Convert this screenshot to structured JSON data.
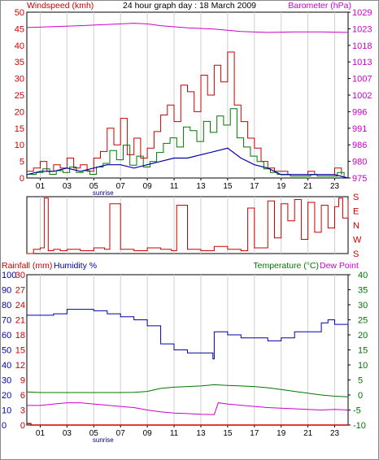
{
  "chart_data": [
    {
      "type": "line",
      "title": "24 hour graph day : 18 March 2009",
      "left_axis": {
        "label": "Windspeed (kmh)",
        "color": "#cc0000",
        "range": [
          0,
          50
        ],
        "ticks": [
          "0",
          "5",
          "10",
          "15",
          "20",
          "25",
          "30",
          "35",
          "40",
          "45",
          "50"
        ]
      },
      "right_axis": {
        "label": "Barometer (hPa)",
        "color": "#cc00cc",
        "range": [
          975,
          1029
        ],
        "ticks": [
          "975",
          "980",
          "986",
          "991",
          "996",
          "1002",
          "1007",
          "1013",
          "1018",
          "1023",
          "1029"
        ]
      },
      "x_ticks": [
        "01",
        "03",
        "05",
        "07",
        "09",
        "11",
        "13",
        "15",
        "17",
        "19",
        "21",
        "23"
      ],
      "annotation": "sunrise",
      "grid": "vertical",
      "series": [
        {
          "name": "Barometer (hPa)",
          "color": "#cc00cc",
          "x": [
            0,
            2,
            4,
            6,
            8,
            9,
            10,
            12,
            14,
            16,
            18,
            20,
            22,
            24
          ],
          "values": [
            1024,
            1024.3,
            1024.6,
            1025,
            1025.4,
            1025.2,
            1024.6,
            1023.9,
            1023.5,
            1022.7,
            1022.4,
            1022.6,
            1022.6,
            1022.4
          ]
        },
        {
          "name": "Windspeed gust",
          "color": "#cc0000",
          "x": [
            0,
            0.5,
            1,
            1.5,
            2,
            2.5,
            3,
            3.5,
            4,
            4.5,
            5,
            5.5,
            6,
            6.5,
            7,
            7.5,
            8,
            8.5,
            9,
            9.5,
            10,
            10.5,
            11,
            11.5,
            12,
            12.5,
            13,
            13.5,
            14,
            14.5,
            15,
            15.5,
            16,
            16.5,
            17,
            17.5,
            18,
            18.5,
            19,
            19.5,
            20,
            20.5,
            21,
            21.5,
            22,
            22.5,
            23,
            23.5
          ],
          "values": [
            2,
            3,
            5,
            2,
            4,
            3,
            6,
            3,
            4,
            2,
            6,
            8,
            15,
            10,
            18,
            7,
            12,
            6,
            9,
            14,
            19,
            22,
            17,
            28,
            26,
            20,
            31,
            25,
            34,
            29,
            38,
            22,
            17,
            12,
            9,
            5,
            3,
            2,
            2,
            1,
            1,
            1,
            2,
            1,
            1,
            1,
            3,
            1
          ]
        },
        {
          "name": "Windspeed average",
          "color": "#0000aa",
          "x": [
            0,
            1,
            2,
            3,
            4,
            5,
            6,
            7,
            8,
            9,
            10,
            11,
            12,
            13,
            14,
            15,
            16,
            17,
            18,
            19,
            20,
            21,
            22,
            23,
            24
          ],
          "values": [
            1,
            2,
            2,
            3,
            2,
            3,
            4,
            4,
            3,
            4,
            5,
            6,
            6,
            7,
            8,
            9,
            6,
            4,
            3,
            1,
            1,
            1,
            1,
            1,
            0
          ]
        }
      ]
    },
    {
      "type": "line",
      "y_categories": [
        "S",
        "E",
        "N",
        "W",
        "S"
      ],
      "color": "#cc0000",
      "x_ticks": [
        "01",
        "03",
        "05",
        "07",
        "09",
        "11",
        "13",
        "15",
        "17",
        "19",
        "21",
        "23"
      ],
      "series": [
        {
          "name": "Wind direction",
          "x": [
            0,
            0.5,
            1,
            1.3,
            1.6,
            2,
            2.5,
            3,
            4,
            5,
            5.8,
            6.2,
            7,
            8,
            9,
            10,
            10.8,
            11.2,
            12,
            13,
            14,
            15,
            16,
            16.5,
            17,
            18,
            18.5,
            19,
            19.5,
            20,
            20.5,
            21,
            21.5,
            22,
            22.5,
            23,
            23.3,
            23.6,
            24
          ],
          "values": [
            0,
            0.3,
            0.4,
            3.9,
            0.2,
            0.3,
            0.2,
            0.3,
            0.2,
            0.4,
            0.3,
            3.5,
            0.3,
            0.2,
            0.4,
            0.3,
            0.2,
            3.4,
            0.3,
            0.2,
            0.5,
            0.3,
            0.2,
            3.2,
            0.4,
            3.7,
            1.1,
            3.5,
            2.3,
            3.8,
            1.0,
            3.6,
            1.5,
            3.4,
            1.8,
            3.3,
            3.9,
            2.5,
            3.8
          ]
        }
      ]
    },
    {
      "type": "line",
      "left_labels": {
        "rainfall": "Rainfall (mm)",
        "humidity": "Humidity %"
      },
      "right_labels": {
        "temperature": "Temperature (°C)",
        "dewpoint": "Dew Point"
      },
      "left_ticks_outer": [
        "0",
        "10",
        "20",
        "30",
        "40",
        "50",
        "60",
        "70",
        "80",
        "90",
        "100"
      ],
      "left_ticks_inner": [
        "0",
        "3",
        "6",
        "9",
        "12",
        "15",
        "18",
        "21",
        "24",
        "27",
        "30"
      ],
      "right_ticks": [
        "-10",
        "-5",
        "0",
        "5",
        "10",
        "15",
        "20",
        "25",
        "30",
        "35",
        "40"
      ],
      "x_ticks": [
        "01",
        "03",
        "05",
        "07",
        "09",
        "11",
        "13",
        "15",
        "17",
        "19",
        "21",
        "23"
      ],
      "annotation": "sunrise",
      "humidity_range": [
        0,
        100
      ],
      "temperature_range": [
        -10,
        40
      ],
      "series": [
        {
          "name": "Humidity %",
          "color": "#0000aa",
          "x": [
            0,
            1,
            2,
            3,
            4,
            5,
            6,
            7,
            8,
            9,
            10,
            11,
            12,
            13,
            13.9,
            14,
            15,
            16,
            17,
            18,
            19,
            20,
            21,
            22,
            22.5,
            23,
            24
          ],
          "values": [
            73,
            73,
            74,
            77,
            77,
            76,
            74,
            72,
            70,
            66,
            54,
            50,
            48,
            48,
            44,
            62,
            60,
            58,
            58,
            56,
            58,
            62,
            62,
            68,
            70,
            67,
            70
          ]
        },
        {
          "name": "Temperature (°C)",
          "color": "#007700",
          "x": [
            0,
            1,
            2,
            3,
            4,
            5,
            6,
            7,
            8,
            9,
            10,
            11,
            12,
            13,
            14,
            15,
            16,
            17,
            18,
            19,
            20,
            21,
            22,
            23,
            24
          ],
          "values": [
            1,
            0.8,
            0.8,
            0.8,
            0.8,
            0.8,
            0.8,
            0.8,
            0.9,
            1.2,
            2.2,
            2.6,
            2.8,
            3.0,
            3.4,
            3.2,
            3.0,
            2.8,
            2.4,
            1.8,
            1.2,
            0.6,
            0.0,
            -0.4,
            -0.6
          ]
        },
        {
          "name": "Dew Point",
          "color": "#cc00cc",
          "x": [
            0,
            1,
            2,
            3,
            4,
            5,
            6,
            7,
            8,
            9,
            10,
            11,
            12,
            13,
            14,
            14.3,
            15,
            16,
            17,
            18,
            19,
            20,
            21,
            22,
            23,
            24
          ],
          "values": [
            -3.5,
            -3.5,
            -3,
            -2.6,
            -2.6,
            -3,
            -3.4,
            -3.8,
            -4.2,
            -5.0,
            -5.6,
            -6,
            -6.2,
            -6.4,
            -6.5,
            -2.6,
            -3.0,
            -3.4,
            -3.8,
            -4.2,
            -4.4,
            -4.6,
            -4.8,
            -5.0,
            -4.8,
            -5.0
          ]
        },
        {
          "name": "Rainfall (mm)",
          "color": "#cc0000",
          "x": [
            0,
            0.3,
            0.3,
            4,
            24
          ],
          "values": [
            1,
            1,
            0,
            0,
            0
          ]
        }
      ]
    }
  ]
}
